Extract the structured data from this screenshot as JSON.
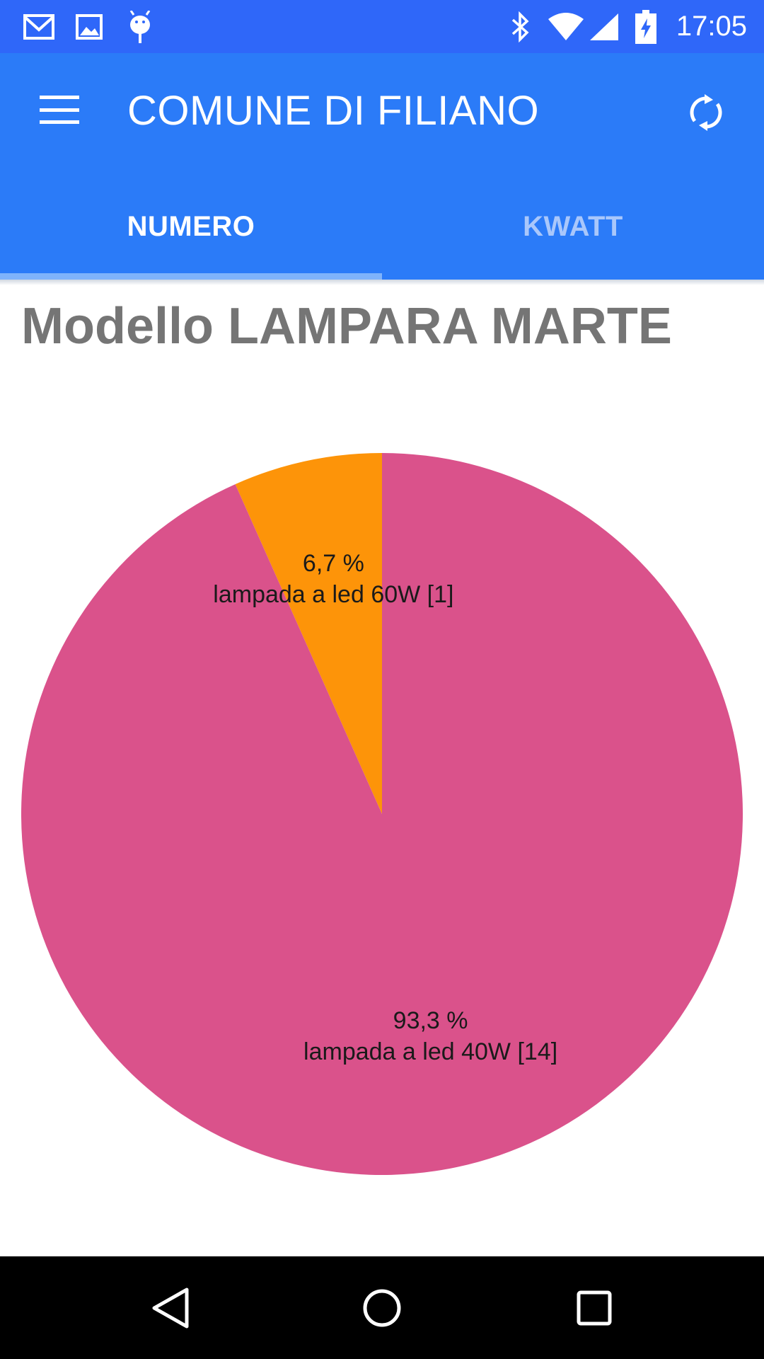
{
  "status_bar": {
    "time": "17:05",
    "left_icons": [
      "gmail-icon",
      "image-icon",
      "android-debug-icon"
    ],
    "right_icons": [
      "bluetooth-icon",
      "wifi-icon",
      "signal-icon",
      "battery-charging-icon"
    ]
  },
  "app_bar": {
    "title": "COMUNE DI FILIANO",
    "menu_icon": "hamburger-menu-icon",
    "refresh_icon": "refresh-icon",
    "color": "#2b7bf8"
  },
  "tabs": [
    {
      "label": "NUMERO",
      "selected": true
    },
    {
      "label": "KWATT",
      "selected": false
    }
  ],
  "page": {
    "heading": "Modello LAMPARA MARTE"
  },
  "chart_data": {
    "type": "pie",
    "title": "",
    "slices": [
      {
        "label": "lampada a led 60W [1]",
        "percent_label": "6,7 %",
        "value": 1,
        "color": "#fd9409"
      },
      {
        "label": "lampada a led 40W [14]",
        "percent_label": "93,3 %",
        "value": 14,
        "color": "#da528b"
      }
    ]
  },
  "nav_bar": {
    "buttons": [
      "back-icon",
      "home-icon",
      "recents-icon"
    ]
  }
}
